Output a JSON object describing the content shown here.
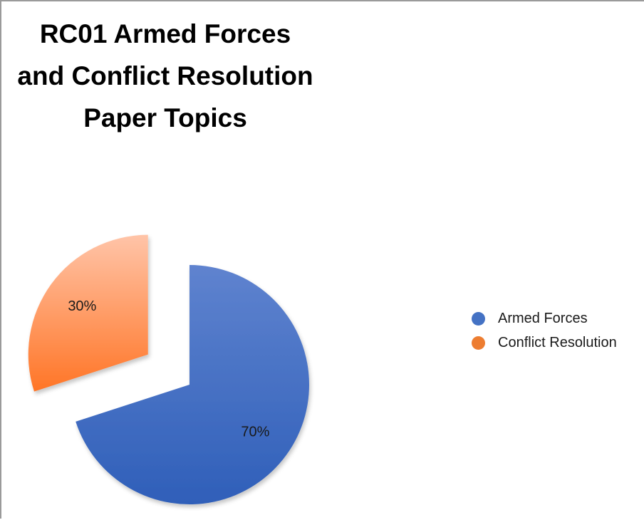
{
  "chart_data": {
    "type": "pie",
    "title": "RC01 Armed Forces and Conflict Resolution Paper Topics",
    "slices": [
      {
        "name": "Armed Forces",
        "value": 70,
        "label": "70%",
        "color": "#4472c4"
      },
      {
        "name": "Conflict Resolution",
        "value": 30,
        "label": "30%",
        "color": "#ed7d31"
      }
    ],
    "exploded": true,
    "legend_position": "right"
  }
}
